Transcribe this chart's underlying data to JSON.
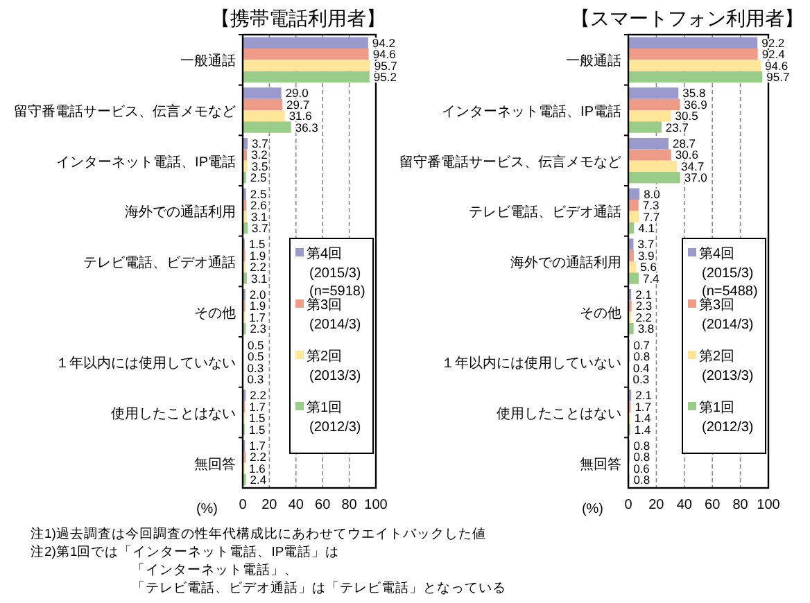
{
  "chart_data": [
    {
      "type": "bar",
      "orientation": "horizontal",
      "title": "【携帯電話利用者】",
      "xlabel": "(%)",
      "categories": [
        "一般通話",
        "留守番電話サービス、伝言メモなど",
        "インターネット電話、IP電話",
        "海外での通話利用",
        "テレビ電話、ビデオ通話",
        "その他",
        "１年以内には使用していない",
        "使用したことはない",
        "無回答"
      ],
      "series": [
        {
          "name": "第4回 (2015/3)",
          "color": "#9999cc",
          "values": [
            94.2,
            29.0,
            3.7,
            2.5,
            1.5,
            2.0,
            0.5,
            2.2,
            1.7
          ],
          "value_labels": [
            "94.2",
            "29.0",
            "3.7",
            "2.5",
            "1.5",
            "2.0",
            "0.5",
            "2.2",
            "1.7"
          ]
        },
        {
          "name": "第3回 (2014/3)",
          "color": "#ee9c88",
          "values": [
            94.6,
            29.7,
            3.2,
            2.6,
            1.9,
            1.9,
            0.5,
            1.7,
            2.2
          ],
          "value_labels": [
            "94.6",
            "29.7",
            "3.2",
            "2.6",
            "1.9",
            "1.9",
            "0.5",
            "1.7",
            "2.2"
          ]
        },
        {
          "name": "第2回 (2013/3)",
          "color": "#ffe699",
          "values": [
            95.7,
            31.6,
            3.5,
            3.1,
            2.2,
            1.7,
            0.3,
            1.5,
            1.6
          ],
          "value_labels": [
            "95.7",
            "31.6",
            "3.5",
            "3.1",
            "2.2",
            "1.7",
            "0.3",
            "1.5",
            "1.6"
          ]
        },
        {
          "name": "第1回 (2012/3)",
          "color": "#99cc88",
          "values": [
            95.2,
            36.3,
            2.5,
            3.7,
            3.1,
            2.3,
            0.3,
            1.5,
            2.4
          ],
          "value_labels": [
            "95.2",
            "36.3",
            "2.5",
            "3.7",
            "3.1",
            "2.3",
            "0.3",
            "1.5",
            "2.4"
          ]
        }
      ],
      "xlim": [
        0,
        100
      ],
      "xticks": [
        0,
        20,
        40,
        60,
        80,
        100
      ],
      "grid": "x",
      "legend": "bottom right",
      "annotations": [
        "(n=5918)"
      ]
    },
    {
      "type": "bar",
      "orientation": "horizontal",
      "title": "【スマートフォン利用者】",
      "xlabel": "(%)",
      "categories": [
        "一般通話",
        "インターネット電話、IP電話",
        "留守番電話サービス、伝言メモなど",
        "テレビ電話、ビデオ通話",
        "海外での通話利用",
        "その他",
        "１年以内には使用していない",
        "使用したことはない",
        "無回答"
      ],
      "series": [
        {
          "name": "第4回 (2015/3)",
          "color": "#9999cc",
          "values": [
            92.2,
            35.8,
            28.7,
            8.0,
            3.7,
            2.1,
            0.7,
            2.1,
            0.8
          ],
          "value_labels": [
            "92.2",
            "35.8",
            "28.7",
            "8.0",
            "3.7",
            "2.1",
            "0.7",
            "2.1",
            "0.8"
          ]
        },
        {
          "name": "第3回 (2014/3)",
          "color": "#ee9c88",
          "values": [
            92.4,
            36.9,
            30.6,
            7.3,
            3.9,
            2.3,
            0.8,
            1.7,
            0.8
          ],
          "value_labels": [
            "92.4",
            "36.9",
            "30.6",
            "7.3",
            "3.9",
            "2.3",
            "0.8",
            "1.7",
            "0.8"
          ]
        },
        {
          "name": "第2回 (2013/3)",
          "color": "#ffe699",
          "values": [
            94.6,
            30.5,
            34.7,
            7.7,
            5.6,
            2.2,
            0.4,
            1.4,
            0.6
          ],
          "value_labels": [
            "94.6",
            "30.5",
            "34.7",
            "7.7",
            "5.6",
            "2.2",
            "0.4",
            "1.4",
            "0.6"
          ]
        },
        {
          "name": "第1回 (2012/3)",
          "color": "#99cc88",
          "values": [
            95.7,
            23.7,
            37.0,
            4.1,
            7.4,
            3.8,
            0.3,
            1.4,
            0.8
          ],
          "value_labels": [
            "95.7",
            "23.7",
            "37.0",
            "4.1",
            "7.4",
            "3.8",
            "0.3",
            "1.4",
            "0.8"
          ]
        }
      ],
      "xlim": [
        0,
        100
      ],
      "xticks": [
        0,
        20,
        40,
        60,
        80,
        100
      ],
      "grid": "x",
      "legend": "bottom right",
      "annotations": [
        "(n=5488)",
        "注1)過去調査は今回調査の性年代構成比にあわせてウエイトバックした値",
        "注2)第1回では「インターネット電話、IP電話」は",
        "「インターネット電話」、",
        "「テレビ電話、ビデオ通話」は「テレビ電話」となっている"
      ]
    }
  ]
}
